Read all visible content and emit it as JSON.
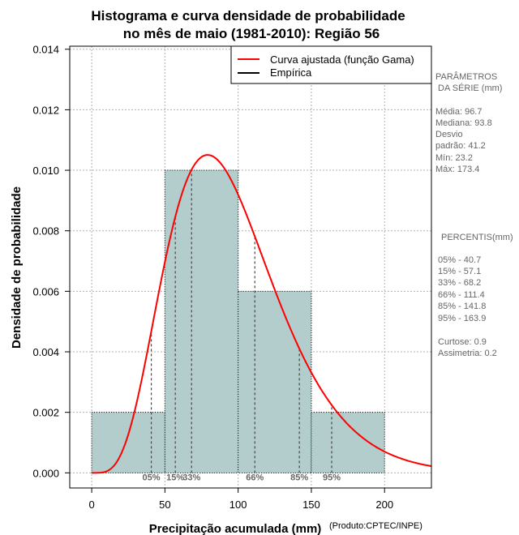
{
  "chart_data": {
    "type": "histogram",
    "title_line1": "Histograma e curva densidade de probabilidade",
    "title_line2": "no mês de maio (1981-2010): Região 56",
    "xlabel": "Precipitação acumulada (mm)",
    "ylabel": "Densidade de probabilidade",
    "credit": "(Produto:CPTEC/INPE)",
    "xlim": [
      -15,
      232
    ],
    "ylim": [
      -0.0005,
      0.0141
    ],
    "x_ticks": [
      0,
      50,
      100,
      150,
      200
    ],
    "x_tick_labels": [
      "0",
      "50",
      "100",
      "150",
      "200"
    ],
    "y_ticks": [
      0.0,
      0.002,
      0.004,
      0.006,
      0.008,
      0.01,
      0.012,
      0.014
    ],
    "y_tick_labels": [
      "0.000",
      "0.002",
      "0.004",
      "0.006",
      "0.008",
      "0.010",
      "0.012",
      "0.014"
    ],
    "grid": true,
    "bins": [
      {
        "start": 0,
        "end": 50,
        "density": 0.002
      },
      {
        "start": 50,
        "end": 100,
        "density": 0.01
      },
      {
        "start": 100,
        "end": 150,
        "density": 0.006
      },
      {
        "start": 150,
        "end": 200,
        "density": 0.002
      }
    ],
    "gamma_fit": {
      "mean": 96.7,
      "sd": 41.2
    },
    "legend": {
      "position": "top-right",
      "entries": [
        {
          "label": "Curva ajustada (função Gama)",
          "color": "#ff0000"
        },
        {
          "label": "Empírica",
          "color": "#000000"
        }
      ]
    },
    "percentiles": [
      {
        "label": "05%",
        "value": 40.7
      },
      {
        "label": "15%",
        "value": 57.1
      },
      {
        "label": "33%",
        "value": 68.2
      },
      {
        "label": "66%",
        "value": 111.4
      },
      {
        "label": "85%",
        "value": 141.8
      },
      {
        "label": "95%",
        "value": 163.9
      }
    ],
    "colors": {
      "bars": "#b3cccc",
      "curve": "#ff0000",
      "grid": "#b0b0b0",
      "side_text": "#666666"
    }
  },
  "side_panel": {
    "params_title_1": "PARÂMETROS",
    "params_title_2": "DA SÉRIE (mm)",
    "media": "Média:  96.7",
    "mediana": "Mediana:  93.8",
    "desvio_1": "Desvio",
    "desvio_2": "padrão:  41.2",
    "min": "Mín:  23.2",
    "max": "Máx:  173.4",
    "percentis_title": "PERCENTIS(mm)",
    "p05": "05% -  40.7",
    "p15": "15% -  57.1",
    "p33": "33% -  68.2",
    "p66": "66% -  111.4",
    "p85": "85% -  141.8",
    "p95": "95% -  163.9",
    "curtose": "Curtose:  0.9",
    "assimetria": "Assimetria:  0.2"
  }
}
